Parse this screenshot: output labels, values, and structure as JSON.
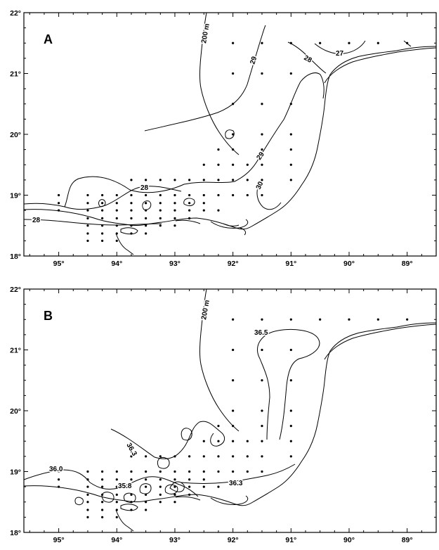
{
  "panels": [
    {
      "id": "A",
      "label": "A",
      "isobath_label": "200 m",
      "contour_labels": [
        "27",
        "28",
        "29",
        "29",
        "30",
        "28",
        "28"
      ]
    },
    {
      "id": "B",
      "label": "B",
      "isobath_label": "200 m",
      "contour_labels": [
        "36.5",
        "36.3",
        "36.0",
        "35.8",
        "36.3"
      ]
    }
  ],
  "axes": {
    "lon_labels": [
      "95°",
      "94°",
      "93°",
      "92°",
      "91°",
      "90°",
      "89°"
    ],
    "lat_labels": [
      "18°",
      "19°",
      "20°",
      "21°",
      "22°"
    ],
    "lon_values": [
      95,
      94,
      93,
      92,
      91,
      90,
      89
    ],
    "lat_values": [
      18,
      19,
      20,
      21,
      22
    ]
  },
  "chart_data": [
    {
      "type": "scatter",
      "title": "",
      "panel": "A",
      "xlim": [
        95.6,
        88.5
      ],
      "ylim": [
        18,
        22
      ],
      "isobath": "200 m",
      "contour_values": [
        27,
        28,
        29,
        30
      ],
      "stations": [
        [
          95.0,
          19.0
        ],
        [
          95.0,
          18.87
        ],
        [
          95.0,
          18.75
        ],
        [
          94.5,
          19.0
        ],
        [
          94.5,
          18.87
        ],
        [
          94.5,
          18.75
        ],
        [
          94.5,
          18.62
        ],
        [
          94.5,
          18.5
        ],
        [
          94.5,
          18.37
        ],
        [
          94.5,
          18.25
        ],
        [
          94.25,
          19.0
        ],
        [
          94.25,
          18.87
        ],
        [
          94.25,
          18.75
        ],
        [
          94.25,
          18.62
        ],
        [
          94.25,
          18.5
        ],
        [
          94.25,
          18.37
        ],
        [
          94.25,
          18.25
        ],
        [
          94.0,
          19.0
        ],
        [
          94.0,
          18.87
        ],
        [
          94.0,
          18.75
        ],
        [
          94.0,
          18.62
        ],
        [
          94.0,
          18.5
        ],
        [
          94.0,
          18.37
        ],
        [
          94.0,
          18.25
        ],
        [
          93.75,
          19.25
        ],
        [
          93.75,
          19.0
        ],
        [
          93.75,
          18.87
        ],
        [
          93.75,
          18.75
        ],
        [
          93.75,
          18.62
        ],
        [
          93.75,
          18.5
        ],
        [
          93.75,
          18.37
        ],
        [
          93.5,
          19.25
        ],
        [
          93.5,
          19.0
        ],
        [
          93.5,
          18.87
        ],
        [
          93.5,
          18.75
        ],
        [
          93.5,
          18.62
        ],
        [
          93.5,
          18.5
        ],
        [
          93.5,
          18.37
        ],
        [
          93.25,
          19.25
        ],
        [
          93.25,
          19.0
        ],
        [
          93.25,
          18.87
        ],
        [
          93.25,
          18.75
        ],
        [
          93.25,
          18.62
        ],
        [
          93.25,
          18.5
        ],
        [
          93.0,
          19.25
        ],
        [
          93.0,
          19.0
        ],
        [
          93.0,
          18.87
        ],
        [
          93.0,
          18.75
        ],
        [
          93.0,
          18.62
        ],
        [
          93.0,
          18.5
        ],
        [
          92.75,
          19.25
        ],
        [
          92.75,
          19.0
        ],
        [
          92.75,
          18.87
        ],
        [
          92.75,
          18.75
        ],
        [
          92.75,
          18.62
        ],
        [
          92.5,
          19.5
        ],
        [
          92.5,
          19.25
        ],
        [
          92.5,
          19.0
        ],
        [
          92.5,
          18.87
        ],
        [
          92.5,
          18.75
        ],
        [
          92.25,
          19.75
        ],
        [
          92.25,
          19.5
        ],
        [
          92.25,
          19.25
        ],
        [
          92.25,
          19.0
        ],
        [
          92.25,
          18.75
        ],
        [
          92.0,
          20.0
        ],
        [
          92.0,
          19.75
        ],
        [
          92.0,
          19.5
        ],
        [
          92.0,
          19.25
        ],
        [
          92.0,
          19.0
        ],
        [
          91.75,
          19.5
        ],
        [
          91.75,
          19.25
        ],
        [
          91.75,
          19.0
        ],
        [
          91.5,
          21.5
        ],
        [
          91.5,
          21.0
        ],
        [
          91.5,
          20.5
        ],
        [
          91.5,
          20.0
        ],
        [
          91.5,
          19.75
        ],
        [
          91.5,
          19.5
        ],
        [
          91.5,
          19.25
        ],
        [
          91.5,
          19.0
        ],
        [
          91.0,
          21.5
        ],
        [
          91.0,
          21.0
        ],
        [
          91.0,
          20.5
        ],
        [
          91.0,
          20.0
        ],
        [
          91.0,
          19.75
        ],
        [
          91.0,
          19.5
        ],
        [
          91.0,
          19.25
        ],
        [
          92.0,
          21.5
        ],
        [
          92.0,
          21.0
        ],
        [
          92.0,
          20.5
        ],
        [
          90.5,
          21.5
        ],
        [
          90.0,
          21.5
        ],
        [
          89.5,
          21.5
        ],
        [
          89.0,
          21.5
        ]
      ]
    },
    {
      "type": "scatter",
      "title": "",
      "panel": "B",
      "xlim": [
        95.6,
        88.5
      ],
      "ylim": [
        18,
        22
      ],
      "isobath": "200 m",
      "contour_values": [
        35.8,
        36.0,
        36.3,
        36.5
      ],
      "stations": [
        [
          95.0,
          19.0
        ],
        [
          95.0,
          18.87
        ],
        [
          95.0,
          18.75
        ],
        [
          94.5,
          19.0
        ],
        [
          94.5,
          18.87
        ],
        [
          94.5,
          18.75
        ],
        [
          94.5,
          18.62
        ],
        [
          94.5,
          18.5
        ],
        [
          94.5,
          18.37
        ],
        [
          94.5,
          18.25
        ],
        [
          94.25,
          19.0
        ],
        [
          94.25,
          18.87
        ],
        [
          94.25,
          18.75
        ],
        [
          94.25,
          18.62
        ],
        [
          94.25,
          18.5
        ],
        [
          94.25,
          18.37
        ],
        [
          94.25,
          18.25
        ],
        [
          94.0,
          19.0
        ],
        [
          94.0,
          18.87
        ],
        [
          94.0,
          18.75
        ],
        [
          94.0,
          18.62
        ],
        [
          94.0,
          18.5
        ],
        [
          94.0,
          18.37
        ],
        [
          94.0,
          18.25
        ],
        [
          93.75,
          19.25
        ],
        [
          93.75,
          19.0
        ],
        [
          93.75,
          18.87
        ],
        [
          93.75,
          18.75
        ],
        [
          93.75,
          18.62
        ],
        [
          93.75,
          18.5
        ],
        [
          93.75,
          18.37
        ],
        [
          93.5,
          19.25
        ],
        [
          93.5,
          19.0
        ],
        [
          93.5,
          18.87
        ],
        [
          93.5,
          18.75
        ],
        [
          93.5,
          18.62
        ],
        [
          93.5,
          18.5
        ],
        [
          93.5,
          18.37
        ],
        [
          93.25,
          19.25
        ],
        [
          93.25,
          19.0
        ],
        [
          93.25,
          18.87
        ],
        [
          93.25,
          18.75
        ],
        [
          93.25,
          18.62
        ],
        [
          93.25,
          18.5
        ],
        [
          93.0,
          19.25
        ],
        [
          93.0,
          19.0
        ],
        [
          93.0,
          18.87
        ],
        [
          93.0,
          18.75
        ],
        [
          93.0,
          18.62
        ],
        [
          93.0,
          18.5
        ],
        [
          92.75,
          19.25
        ],
        [
          92.75,
          19.0
        ],
        [
          92.75,
          18.87
        ],
        [
          92.75,
          18.75
        ],
        [
          92.75,
          18.62
        ],
        [
          92.5,
          19.5
        ],
        [
          92.5,
          19.25
        ],
        [
          92.5,
          19.0
        ],
        [
          92.5,
          18.87
        ],
        [
          92.5,
          18.75
        ],
        [
          92.25,
          19.75
        ],
        [
          92.25,
          19.5
        ],
        [
          92.25,
          19.25
        ],
        [
          92.25,
          19.0
        ],
        [
          92.25,
          18.75
        ],
        [
          92.0,
          20.0
        ],
        [
          92.0,
          19.75
        ],
        [
          92.0,
          19.5
        ],
        [
          92.0,
          19.25
        ],
        [
          92.0,
          19.0
        ],
        [
          91.75,
          19.5
        ],
        [
          91.75,
          19.25
        ],
        [
          91.75,
          19.0
        ],
        [
          91.5,
          21.5
        ],
        [
          91.5,
          21.0
        ],
        [
          91.5,
          20.5
        ],
        [
          91.5,
          20.0
        ],
        [
          91.5,
          19.75
        ],
        [
          91.5,
          19.5
        ],
        [
          91.5,
          19.25
        ],
        [
          91.5,
          19.0
        ],
        [
          91.0,
          21.5
        ],
        [
          91.0,
          21.0
        ],
        [
          91.0,
          20.5
        ],
        [
          91.0,
          20.0
        ],
        [
          91.0,
          19.75
        ],
        [
          91.0,
          19.5
        ],
        [
          91.0,
          19.25
        ],
        [
          92.0,
          21.5
        ],
        [
          92.0,
          21.0
        ],
        [
          92.0,
          20.5
        ],
        [
          90.5,
          21.5
        ],
        [
          90.0,
          21.5
        ],
        [
          89.5,
          21.5
        ],
        [
          89.0,
          21.5
        ]
      ]
    }
  ]
}
